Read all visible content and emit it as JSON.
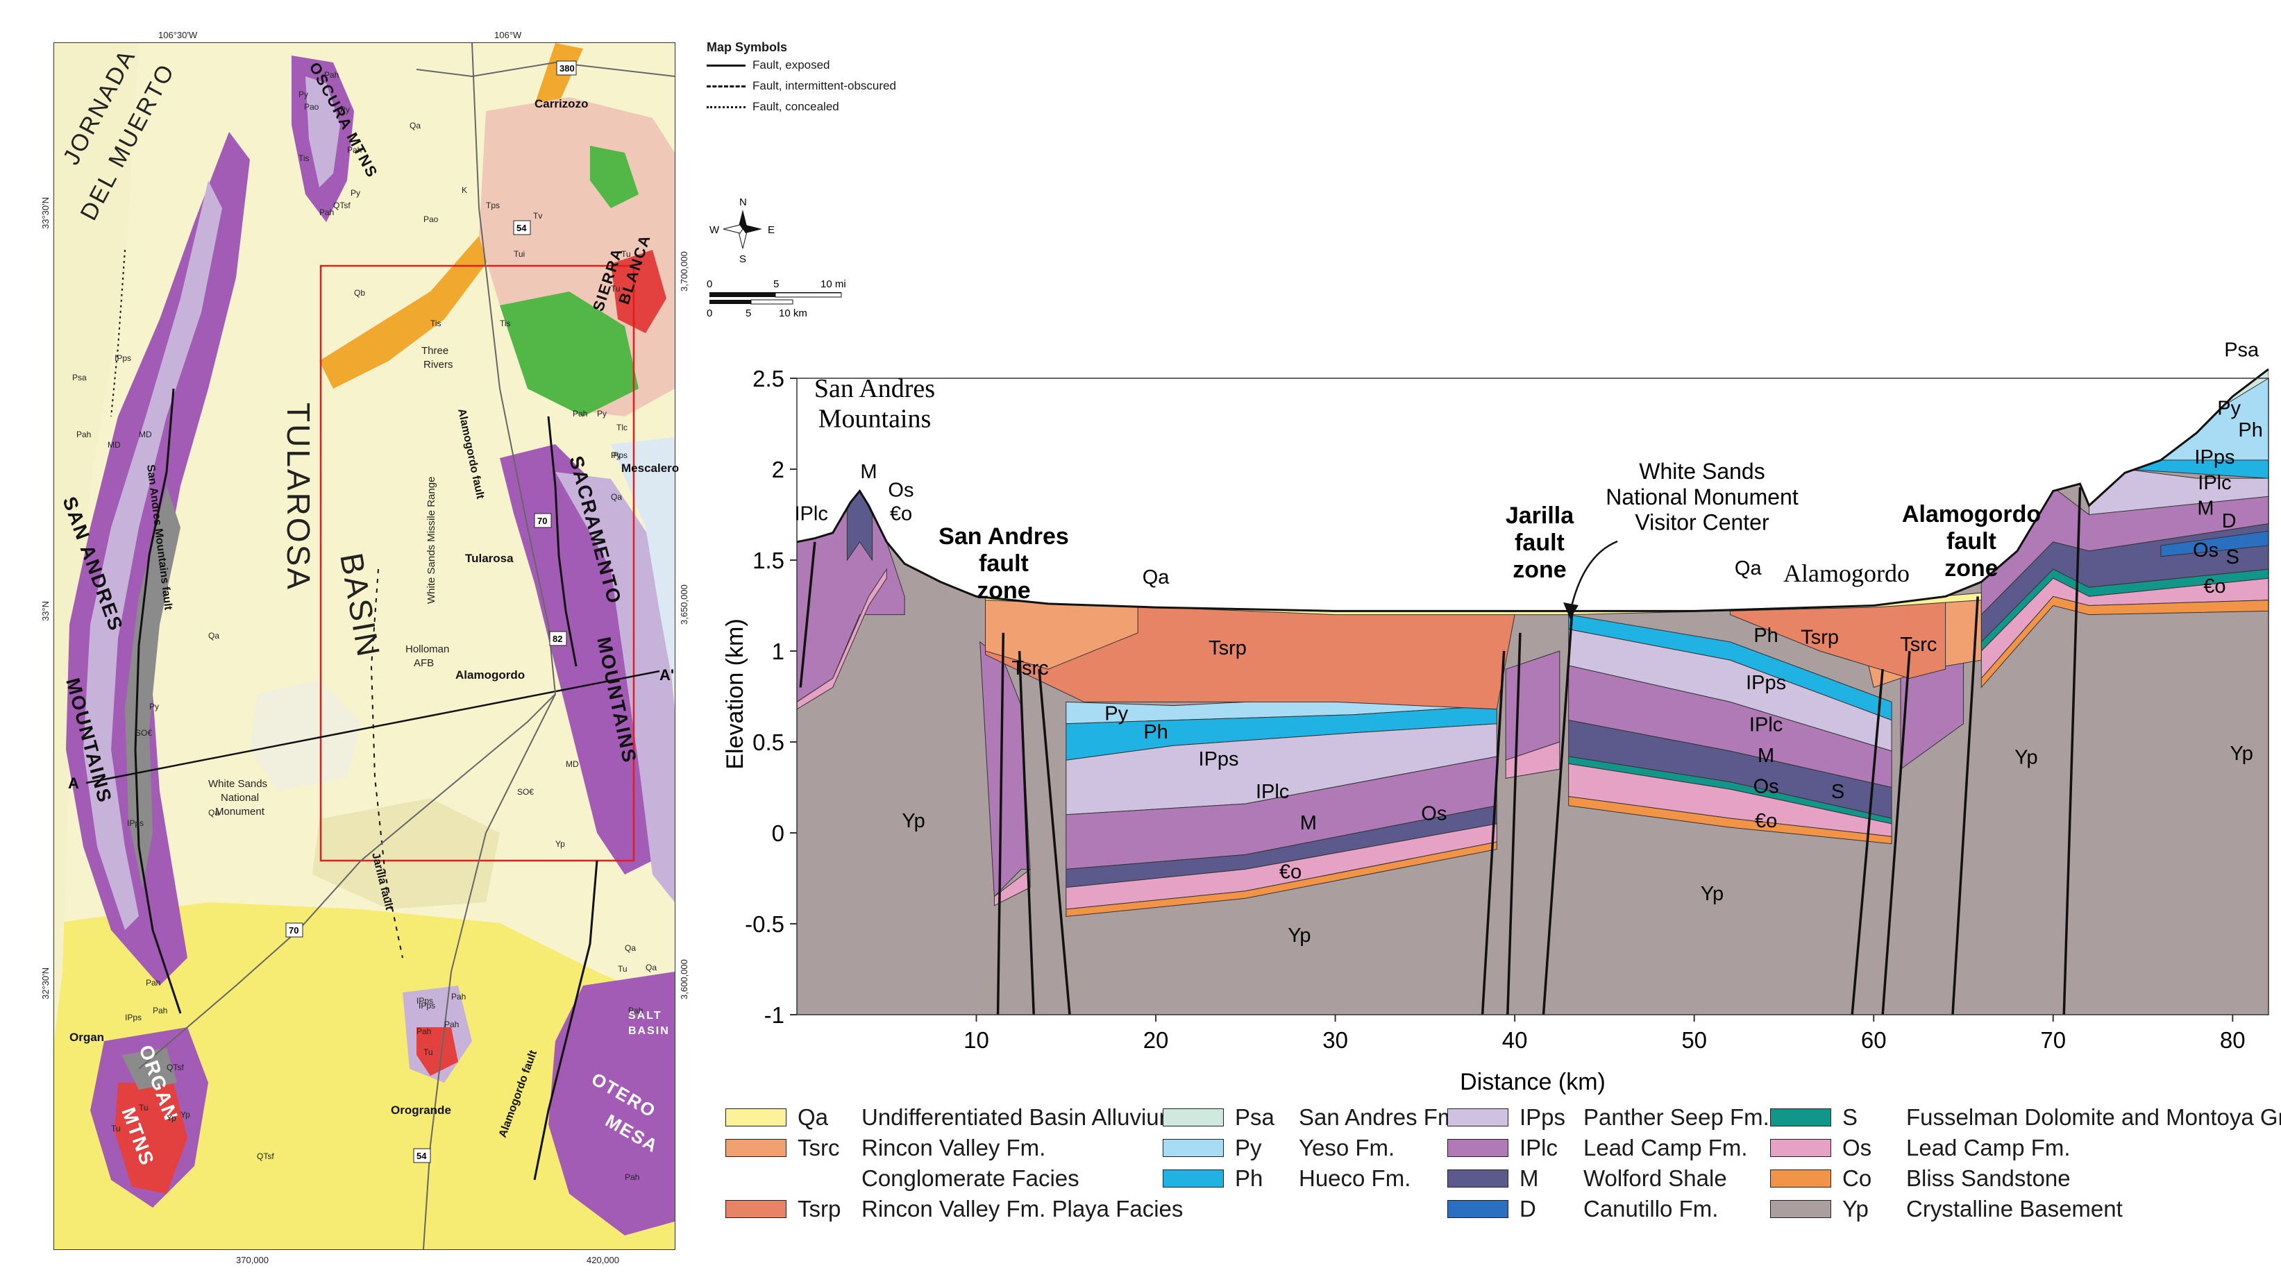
{
  "map": {
    "lon_labels": [
      "106°30'W",
      "106°W"
    ],
    "lat_labels": [
      "33°30'N",
      "33°N",
      "32°30'N"
    ],
    "easting_labels": [
      "370,000",
      "420,000"
    ],
    "northing_labels": [
      "3,700,000",
      "3,650,000",
      "3,600,000"
    ],
    "region_labels": {
      "jornada": [
        "JORNADA",
        "DEL MUERTO"
      ],
      "oscura": "OSCURA MTNS",
      "sierra_blanca": [
        "SIERRA",
        "BLANCA"
      ],
      "san_andres_mtns": [
        "SAN ANDRES",
        "MOUNTAINS"
      ],
      "tularosa_basin": [
        "TULAROSA",
        "BASIN"
      ],
      "sacramento_mtns": [
        "SACRAMENTO",
        "MOUNTAINS"
      ],
      "organ_mtns": [
        "ORGAN",
        "MTNS"
      ],
      "otero_mesa": [
        "OTERO",
        "MESA"
      ],
      "salt_basin": [
        "SALT",
        "BASIN"
      ]
    },
    "place_labels": {
      "carrizozo": "Carrizozo",
      "three_rivers": [
        "Three",
        "Rivers"
      ],
      "mescalero": "Mescalero",
      "tularosa": "Tularosa",
      "holloman": [
        "Holloman",
        "AFB"
      ],
      "alamogordo": "Alamogordo",
      "wsnm": [
        "White Sands",
        "National",
        "Monument"
      ],
      "organ": "Organ",
      "orogrande": "Orogrande",
      "missile_range": "White Sands Missile Range"
    },
    "fault_labels": {
      "san_andres": "San Andres Mountains fault",
      "alamogordo_north": "Alamogordo fault",
      "jarilla": "Jarilla fault",
      "alamogordo_south": "Alamogordo fault"
    },
    "highway_labels": [
      "380",
      "54",
      "70",
      "82",
      "70",
      "54"
    ],
    "section_endpoints": [
      "A",
      "A'"
    ],
    "unit_labels": [
      "Pah",
      "Py",
      "Pao",
      "Py",
      "Pah",
      "Py",
      "Pah",
      "QTsf",
      "Tis",
      "Qa",
      "K",
      "Tps",
      "Tv",
      "Tui",
      "Pao",
      "Tu",
      "Qb",
      "Tis",
      "Tis",
      "Tu",
      "Py",
      "Tlc",
      "Pah",
      "IPps",
      "Qa",
      "MD",
      "Pah",
      "IPps",
      "Psa",
      "MD",
      "Py",
      "Qa",
      "SO€",
      "Qa",
      "IPps",
      "SO€",
      "MD",
      "Yp",
      "Pah",
      "Pah",
      "IPps",
      "QTsf",
      "Yp",
      "Tu",
      "QTsf",
      "Pah",
      "Qa",
      "Pah",
      "Pah",
      "Yp",
      "Tu",
      "Tu",
      "Pah",
      "IPps",
      "Qa",
      "Py",
      "Pah",
      "IPps",
      "Tu"
    ]
  },
  "symbols": {
    "title": "Map Symbols",
    "items": [
      "Fault, exposed",
      "Fault, intermittent-obscured",
      "Fault, concealed"
    ]
  },
  "compass": {
    "n": "N",
    "s": "S",
    "e": "E",
    "w": "W"
  },
  "scale": {
    "mi_ticks": [
      "0",
      "5",
      "10 mi"
    ],
    "km_ticks": [
      "0",
      "5",
      "10 km"
    ]
  },
  "chart_data": {
    "type": "cross-section",
    "xlabel": "Distance (km)",
    "ylabel": "Elevation (km)",
    "xlim": [
      0,
      82
    ],
    "ylim": [
      -1,
      2.5
    ],
    "x_ticks": [
      "10",
      "20",
      "30",
      "40",
      "50",
      "60",
      "70",
      "80"
    ],
    "y_ticks": [
      "2.5",
      "2",
      "1.5",
      "1",
      "0.5",
      "0",
      "-0.5",
      "-1"
    ],
    "surface_profile_km": [
      [
        0,
        1.6
      ],
      [
        1,
        1.62
      ],
      [
        2,
        1.65
      ],
      [
        3,
        1.82
      ],
      [
        3.5,
        1.88
      ],
      [
        4,
        1.8
      ],
      [
        5,
        1.6
      ],
      [
        6,
        1.48
      ],
      [
        8,
        1.38
      ],
      [
        10,
        1.3
      ],
      [
        14,
        1.26
      ],
      [
        20,
        1.24
      ],
      [
        30,
        1.22
      ],
      [
        40,
        1.22
      ],
      [
        43,
        1.22
      ],
      [
        50,
        1.22
      ],
      [
        60,
        1.25
      ],
      [
        64,
        1.3
      ],
      [
        66,
        1.38
      ],
      [
        68,
        1.55
      ],
      [
        70,
        1.88
      ],
      [
        71.5,
        1.92
      ],
      [
        72,
        1.8
      ],
      [
        74,
        1.98
      ],
      [
        76,
        2.05
      ],
      [
        78,
        2.2
      ],
      [
        80,
        2.4
      ],
      [
        82,
        2.55
      ]
    ],
    "annotations": {
      "san_andres_mountains": [
        "San Andres",
        "Mountains"
      ],
      "san_andres_fault_zone": [
        "San Andres",
        "fault",
        "zone"
      ],
      "jarilla_fault_zone": [
        "Jarilla",
        "fault",
        "zone"
      ],
      "wsnm_visitor_center": [
        "White Sands",
        "National Monument",
        "Visitor Center"
      ],
      "alamogordo_fault_zone": [
        "Alamogordo",
        "fault",
        "zone"
      ],
      "alamogordo_town": "Alamogordo"
    },
    "unit_labels_in_section": [
      "IPlc",
      "M",
      "Os",
      "€o",
      "Qa",
      "Tsrp",
      "Tsrc",
      "Py",
      "Ph",
      "IPps",
      "IPlc",
      "M",
      "Os",
      "€o",
      "Yp",
      "Yp",
      "Ph",
      "Tsrp",
      "IPps",
      "IPlc",
      "M",
      "Os",
      "S",
      "€o",
      "Yp",
      "Tsrc",
      "Qa",
      "Yp",
      "Psa",
      "Py",
      "Ph",
      "IPps",
      "IPlc",
      "M",
      "D",
      "Os",
      "S",
      "€o",
      "Yp",
      "Yp"
    ]
  },
  "legend": {
    "col1": [
      {
        "sym": "Qa",
        "name": "Undifferentiated Basin Alluvium",
        "color": "#fbf29a"
      },
      {
        "sym": "Tsrc",
        "name": "Rincon Valley Fm.",
        "name2": "Conglomerate Facies",
        "color": "#f1a071"
      },
      {
        "sym": "Tsrp",
        "name": "Rincon Valley Fm. Playa Facies",
        "color": "#e88466"
      }
    ],
    "col2": [
      {
        "sym": "Psa",
        "name": "San Andres Fm.",
        "color": "#cfe9df"
      },
      {
        "sym": "Py",
        "name": "Yeso Fm.",
        "color": "#a8dcf4"
      },
      {
        "sym": "Ph",
        "name": "Hueco Fm.",
        "color": "#1fb2e3"
      }
    ],
    "col3": [
      {
        "sym": "IPps",
        "name": "Panther Seep Fm.",
        "color": "#cfc2e0"
      },
      {
        "sym": "IPlc",
        "name": "Lead Camp Fm.",
        "color": "#b07ab6"
      },
      {
        "sym": "M",
        "name": "Wolford Shale",
        "color": "#5c5a8c"
      },
      {
        "sym": "D",
        "name": "Canutillo Fm.",
        "color": "#2a6fc0"
      }
    ],
    "col4": [
      {
        "sym": "S",
        "name": "Fusselman Dolomite and Montoya Group",
        "color": "#13968a"
      },
      {
        "sym": "Os",
        "name": "Lead Camp Fm.",
        "color": "#e6a2c4"
      },
      {
        "sym": "Co",
        "name": "Bliss Sandstone",
        "color": "#f29448"
      },
      {
        "sym": "Yp",
        "name": "Crystalline Basement",
        "color": "#ab9e9e"
      }
    ]
  }
}
